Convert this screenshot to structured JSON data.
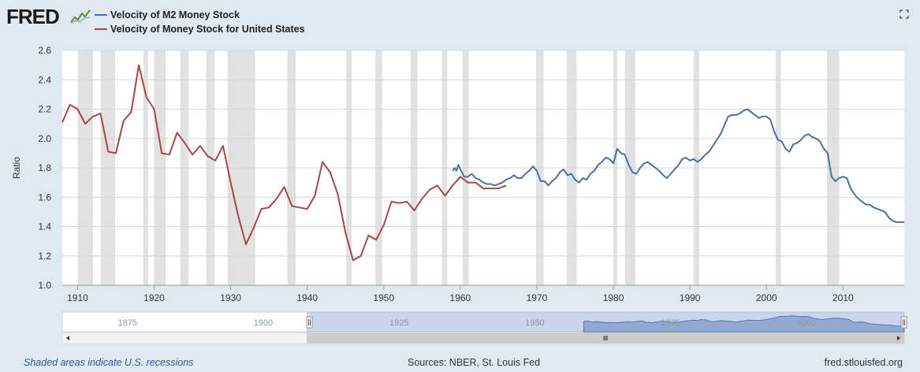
{
  "header": {
    "logo_text": "FRED",
    "logo_icon": "chart-line-icon",
    "fullscreen_icon": "expand-icon"
  },
  "legend": [
    {
      "name": "Velocity of M2 Money Stock",
      "color": "#4572a7"
    },
    {
      "name": "Velocity of Money Stock for United States",
      "color": "#aa4643"
    }
  ],
  "footer": {
    "note": "Shaded areas indicate U.S. recessions",
    "sources": "Sources: NBER, St. Louis Fed",
    "site": "fred.stlouisfed.org"
  },
  "navigator": {
    "tick_labels": [
      "1875",
      "1900",
      "1925",
      "1950",
      "1975",
      "2000"
    ],
    "tick_values": [
      1875,
      1900,
      1925,
      1950,
      1975,
      2000
    ],
    "range": [
      1863,
      2018
    ],
    "selected": [
      1908,
      2018
    ],
    "scroll_icon": "grip-icon"
  },
  "chart_data": {
    "type": "line",
    "ylabel": "Ratio",
    "xlim": [
      1908,
      2018
    ],
    "ylim": [
      1.0,
      2.6
    ],
    "yticks": [
      1.0,
      1.2,
      1.4,
      1.6,
      1.8,
      2.0,
      2.2,
      2.4,
      2.6
    ],
    "xticks": [
      1910,
      1920,
      1930,
      1940,
      1950,
      1960,
      1970,
      1980,
      1990,
      2000,
      2010
    ],
    "recessions": [
      [
        1910.0,
        1912.0
      ],
      [
        1913.0,
        1914.9
      ],
      [
        1918.6,
        1919.2
      ],
      [
        1920.0,
        1921.5
      ],
      [
        1923.4,
        1924.5
      ],
      [
        1926.8,
        1927.9
      ],
      [
        1929.6,
        1933.2
      ],
      [
        1937.4,
        1938.5
      ],
      [
        1945.1,
        1945.8
      ],
      [
        1948.9,
        1949.8
      ],
      [
        1953.5,
        1954.4
      ],
      [
        1957.6,
        1958.3
      ],
      [
        1960.3,
        1961.1
      ],
      [
        1969.9,
        1970.9
      ],
      [
        1973.9,
        1975.2
      ],
      [
        1980.0,
        1980.5
      ],
      [
        1981.5,
        1982.9
      ],
      [
        1990.5,
        1991.2
      ],
      [
        2001.2,
        2001.9
      ],
      [
        2007.9,
        2009.5
      ]
    ],
    "series": [
      {
        "name": "Velocity of Money Stock for United States",
        "x": [
          1908,
          1909,
          1910,
          1911,
          1912,
          1913,
          1914,
          1915,
          1916,
          1917,
          1918,
          1919,
          1920,
          1921,
          1922,
          1923,
          1924,
          1925,
          1926,
          1927,
          1928,
          1929,
          1930,
          1931,
          1932,
          1933,
          1934,
          1935,
          1936,
          1937,
          1938,
          1939,
          1940,
          1941,
          1942,
          1943,
          1944,
          1945,
          1946,
          1947,
          1948,
          1949,
          1950,
          1951,
          1952,
          1953,
          1954,
          1955,
          1956,
          1957,
          1958,
          1959,
          1960,
          1961,
          1962,
          1963,
          1964,
          1965,
          1966
        ],
        "y": [
          2.11,
          2.23,
          2.2,
          2.1,
          2.15,
          2.17,
          1.91,
          1.9,
          2.12,
          2.18,
          2.5,
          2.28,
          2.2,
          1.9,
          1.89,
          2.04,
          1.97,
          1.89,
          1.95,
          1.88,
          1.85,
          1.95,
          1.7,
          1.47,
          1.28,
          1.39,
          1.52,
          1.53,
          1.59,
          1.67,
          1.54,
          1.53,
          1.52,
          1.61,
          1.84,
          1.77,
          1.62,
          1.36,
          1.17,
          1.2,
          1.34,
          1.31,
          1.41,
          1.57,
          1.56,
          1.57,
          1.51,
          1.59,
          1.65,
          1.68,
          1.61,
          1.68,
          1.74,
          1.7,
          1.7,
          1.66,
          1.66,
          1.66,
          1.68
        ]
      },
      {
        "name": "Velocity of M2 Money Stock",
        "x": [
          1959.0,
          1959.25,
          1959.5,
          1959.75,
          1960.0,
          1960.5,
          1961.0,
          1961.5,
          1962.0,
          1962.5,
          1963.0,
          1963.5,
          1964.0,
          1964.5,
          1965.0,
          1965.5,
          1966.0,
          1966.5,
          1967.0,
          1967.5,
          1968.0,
          1968.5,
          1969.0,
          1969.5,
          1970.0,
          1970.5,
          1971.0,
          1971.5,
          1972.0,
          1972.5,
          1973.0,
          1973.5,
          1974.0,
          1974.5,
          1975.0,
          1975.5,
          1976.0,
          1976.5,
          1977.0,
          1977.5,
          1978.0,
          1978.5,
          1979.0,
          1979.5,
          1980.0,
          1980.5,
          1981.0,
          1981.5,
          1982.0,
          1982.5,
          1983.0,
          1983.5,
          1984.0,
          1984.5,
          1985.0,
          1985.5,
          1986.0,
          1986.5,
          1987.0,
          1987.5,
          1988.0,
          1988.5,
          1989.0,
          1989.5,
          1990.0,
          1990.5,
          1991.0,
          1991.5,
          1992.0,
          1992.5,
          1993.0,
          1993.5,
          1994.0,
          1994.5,
          1995.0,
          1995.5,
          1996.0,
          1996.5,
          1997.0,
          1997.5,
          1998.0,
          1998.5,
          1999.0,
          1999.5,
          2000.0,
          2000.5,
          2001.0,
          2001.5,
          2002.0,
          2002.5,
          2003.0,
          2003.5,
          2004.0,
          2004.5,
          2005.0,
          2005.5,
          2006.0,
          2006.5,
          2007.0,
          2007.5,
          2008.0,
          2008.5,
          2009.0,
          2009.5,
          2010.0,
          2010.5,
          2011.0,
          2011.5,
          2012.0,
          2012.5,
          2013.0,
          2013.5,
          2014.0,
          2014.5,
          2015.0,
          2015.5,
          2016.0,
          2016.5,
          2017.0,
          2017.5,
          2018.0
        ],
        "y": [
          1.78,
          1.8,
          1.78,
          1.82,
          1.79,
          1.74,
          1.74,
          1.76,
          1.73,
          1.72,
          1.7,
          1.69,
          1.69,
          1.68,
          1.69,
          1.7,
          1.72,
          1.73,
          1.75,
          1.73,
          1.73,
          1.76,
          1.78,
          1.81,
          1.78,
          1.71,
          1.71,
          1.68,
          1.71,
          1.73,
          1.77,
          1.79,
          1.75,
          1.76,
          1.72,
          1.7,
          1.73,
          1.72,
          1.76,
          1.78,
          1.82,
          1.84,
          1.87,
          1.86,
          1.83,
          1.93,
          1.9,
          1.89,
          1.82,
          1.77,
          1.76,
          1.8,
          1.83,
          1.84,
          1.82,
          1.8,
          1.78,
          1.75,
          1.73,
          1.76,
          1.79,
          1.82,
          1.86,
          1.87,
          1.85,
          1.86,
          1.84,
          1.86,
          1.89,
          1.91,
          1.95,
          1.99,
          2.03,
          2.09,
          2.15,
          2.16,
          2.16,
          2.17,
          2.19,
          2.2,
          2.18,
          2.16,
          2.14,
          2.15,
          2.15,
          2.13,
          2.05,
          1.99,
          1.98,
          1.93,
          1.91,
          1.96,
          1.97,
          1.99,
          2.02,
          2.03,
          2.01,
          2.0,
          1.98,
          1.93,
          1.9,
          1.74,
          1.71,
          1.73,
          1.74,
          1.73,
          1.66,
          1.62,
          1.59,
          1.57,
          1.55,
          1.55,
          1.53,
          1.52,
          1.51,
          1.5,
          1.46,
          1.44,
          1.43,
          1.43,
          1.43
        ]
      }
    ]
  }
}
